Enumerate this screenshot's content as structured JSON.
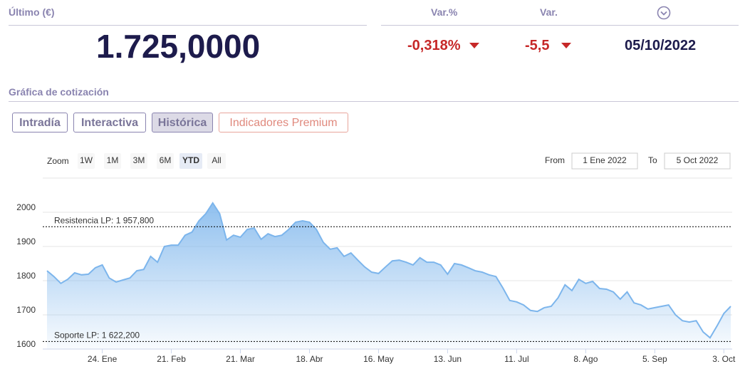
{
  "header": {
    "last_label": "Último (€)",
    "last_value": "1.725,0000",
    "var_pct_label": "Var.%",
    "var_label": "Var.",
    "var_pct": "-0,318%",
    "var": "-5,5",
    "date": "05/10/2022"
  },
  "section_title": "Gráfica de cotización",
  "tabs": [
    "Intradía",
    "Interactiva",
    "Histórica",
    "Indicadores Premium"
  ],
  "zoom": {
    "label": "Zoom",
    "buttons": [
      "1W",
      "1M",
      "3M",
      "6M",
      "YTD",
      "All"
    ]
  },
  "range": {
    "from_label": "From",
    "from": "1 Ene 2022",
    "to_label": "To",
    "to": "5 Oct 2022"
  },
  "chart_data": {
    "type": "area",
    "color": "#7cb5ec",
    "categories": [
      null,
      null,
      null,
      null,
      null,
      null,
      null,
      null,
      "24. Ene",
      null,
      null,
      null,
      null,
      null,
      null,
      null,
      null,
      null,
      "21. Feb",
      null,
      null,
      null,
      null,
      null,
      null,
      null,
      null,
      null,
      "21. Mar",
      null,
      null,
      null,
      null,
      null,
      null,
      null,
      null,
      null,
      "18. Abr",
      null,
      null,
      null,
      null,
      null,
      null,
      null,
      null,
      null,
      "16. May",
      null,
      null,
      null,
      null,
      null,
      null,
      null,
      null,
      null,
      "13. Jun",
      null,
      null,
      null,
      null,
      null,
      null,
      null,
      null,
      null,
      "11. Jul",
      null,
      null,
      null,
      null,
      null,
      null,
      null,
      null,
      null,
      "8. Ago",
      null,
      null,
      null,
      null,
      null,
      null,
      null,
      null,
      null,
      "5. Sep",
      null,
      null,
      null,
      null,
      null,
      null,
      null,
      null,
      null,
      "3. Oct",
      null
    ],
    "values": [
      1829,
      1812,
      1792,
      1804,
      1823,
      1817,
      1819,
      1838,
      1846,
      1808,
      1796,
      1802,
      1808,
      1829,
      1833,
      1871,
      1854,
      1900,
      1904,
      1904,
      1933,
      1942,
      1975,
      1996,
      2027,
      1996,
      1919,
      1933,
      1927,
      1950,
      1954,
      1921,
      1937,
      1929,
      1933,
      1950,
      1971,
      1975,
      1971,
      1950,
      1912,
      1892,
      1896,
      1871,
      1881,
      1860,
      1840,
      1825,
      1821,
      1840,
      1858,
      1860,
      1854,
      1846,
      1867,
      1854,
      1854,
      1846,
      1819,
      1850,
      1846,
      1838,
      1829,
      1825,
      1817,
      1812,
      1779,
      1742,
      1738,
      1729,
      1713,
      1710,
      1721,
      1725,
      1750,
      1788,
      1771,
      1804,
      1792,
      1798,
      1777,
      1775,
      1767,
      1746,
      1767,
      1735,
      1729,
      1717,
      1721,
      1725,
      1729,
      1700,
      1683,
      1679,
      1683,
      1650,
      1633,
      1667,
      1704,
      1725
    ],
    "ylim": [
      1600,
      2100
    ],
    "yticks": [
      1600,
      1700,
      1800,
      1900,
      2000
    ],
    "grid": true,
    "plot_lines": [
      {
        "label": "Resistencia LP: 1 957,800",
        "value": 1957.8
      },
      {
        "label": "Soporte LP: 1 622,200",
        "value": 1622.2
      }
    ]
  }
}
